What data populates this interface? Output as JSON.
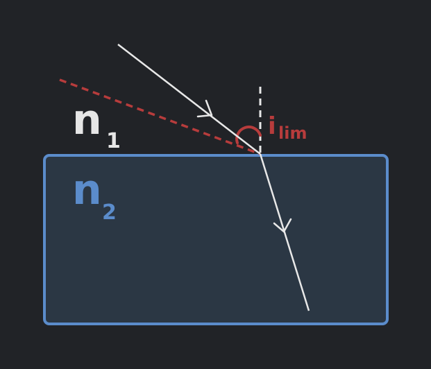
{
  "colors": {
    "background": "#212327",
    "medium_fill": "#2b3744",
    "medium_stroke": "#5b8ccb",
    "ray": "#e8e8e8",
    "limit": "#b73c3c",
    "n1_label": "#e6e6e6",
    "n2_label": "#5b8ccb"
  },
  "labels": {
    "n1": {
      "main": "n",
      "sub": "1"
    },
    "n2": {
      "main": "n",
      "sub": "2"
    },
    "angle": {
      "main": "i",
      "sub": "lim"
    }
  },
  "icons": {
    "incident_arrow": "chevron-arrow",
    "refracted_arrow": "chevron-arrow"
  }
}
